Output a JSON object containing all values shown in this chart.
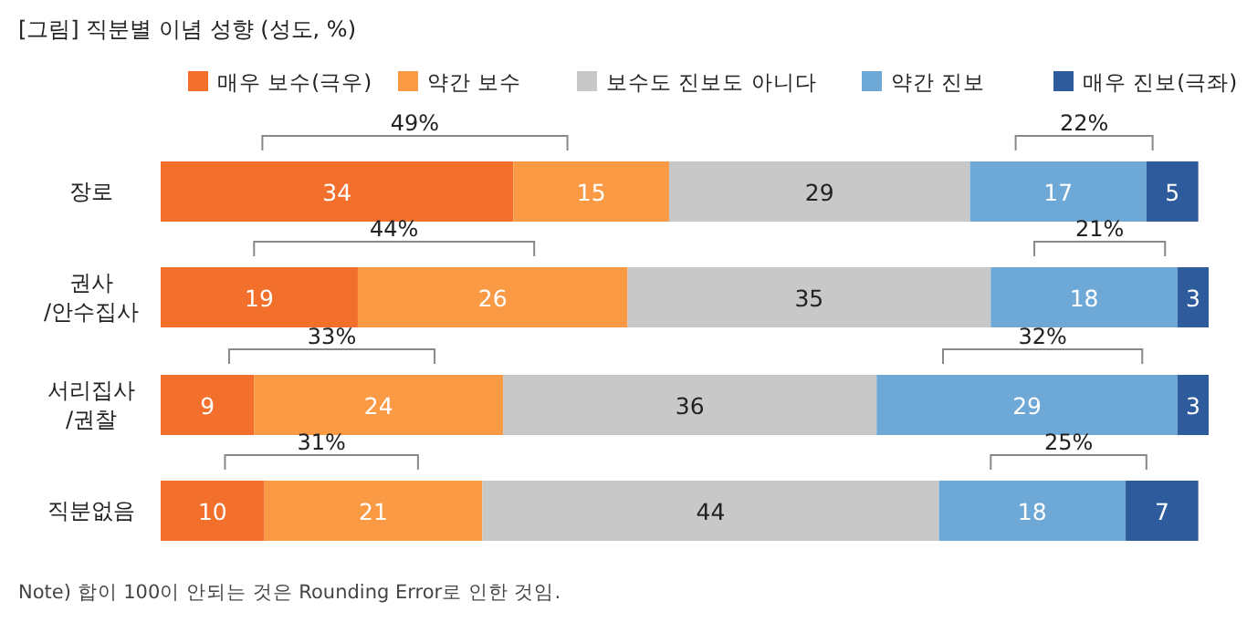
{
  "chart_data": {
    "type": "bar",
    "orientation": "horizontal",
    "stacked": true,
    "data_labels": true,
    "legend": "top right",
    "title": "[그림] 직분별 이념 성향 (성도, %)",
    "categories": [
      "장로",
      "권사\n/안수집사",
      "서리집사\n/권찰",
      "직분없음"
    ],
    "series": [
      {
        "name": "매우 보수(극우)",
        "color": "#f26f2c",
        "values": [
          34,
          19,
          9,
          10
        ]
      },
      {
        "name": "약간 보수",
        "color": "#fb9a44",
        "values": [
          15,
          26,
          24,
          21
        ]
      },
      {
        "name": "보수도 진보도 아니다",
        "color": "#c8c8c8",
        "values": [
          29,
          35,
          36,
          44
        ]
      },
      {
        "name": "약간 진보",
        "color": "#6ea8d6",
        "values": [
          17,
          18,
          29,
          18
        ]
      },
      {
        "name": "매우 진보(극좌)",
        "color": "#2e5b9b",
        "values": [
          5,
          3,
          3,
          7
        ]
      }
    ],
    "annotations": [
      "49%",
      "22%",
      "44%",
      "21%",
      "33%",
      "32%",
      "31%",
      "25%",
      "Note) 합이 100이 안되는 것은 Rounding Error로 인한 것임."
    ]
  }
}
